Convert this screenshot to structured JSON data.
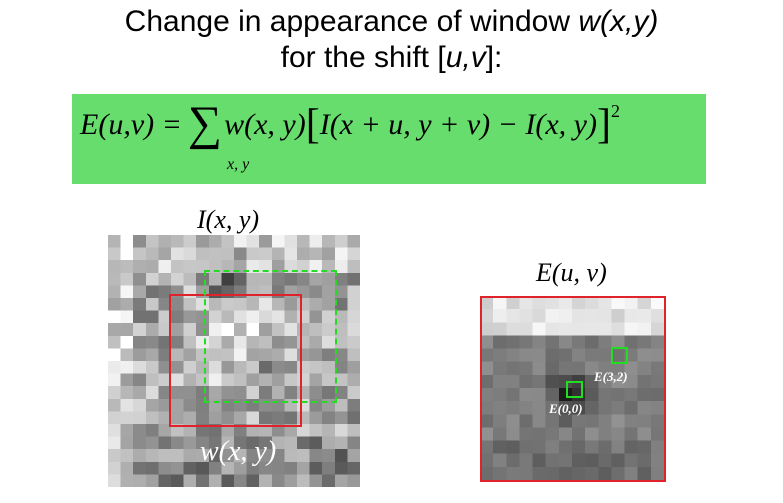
{
  "title": {
    "line1_text": "Change in appearance of window ",
    "line1_math": "w(x,y)",
    "line2_pre": "for the shift [",
    "line2_math": "u,v",
    "line2_post": "]:"
  },
  "equation": {
    "lhs": "E(u,v) = ",
    "sum_symbol": "∑",
    "term": "w(x, y)",
    "bracket_open": "[",
    "inner": "I(x + u, y + v) − I(x, y)",
    "bracket_close": "]",
    "power": "2",
    "subscript": "x, y"
  },
  "image_label": "I(x, y)",
  "error_label": "E(u, v)",
  "window_label": "w(x, y)",
  "markers": {
    "e00": "E(0,0)",
    "e32": "E(3,2)"
  },
  "colors": {
    "equation_background": "#66dd6c",
    "red_box": "#e0222a",
    "green_box": "#22dd22"
  }
}
